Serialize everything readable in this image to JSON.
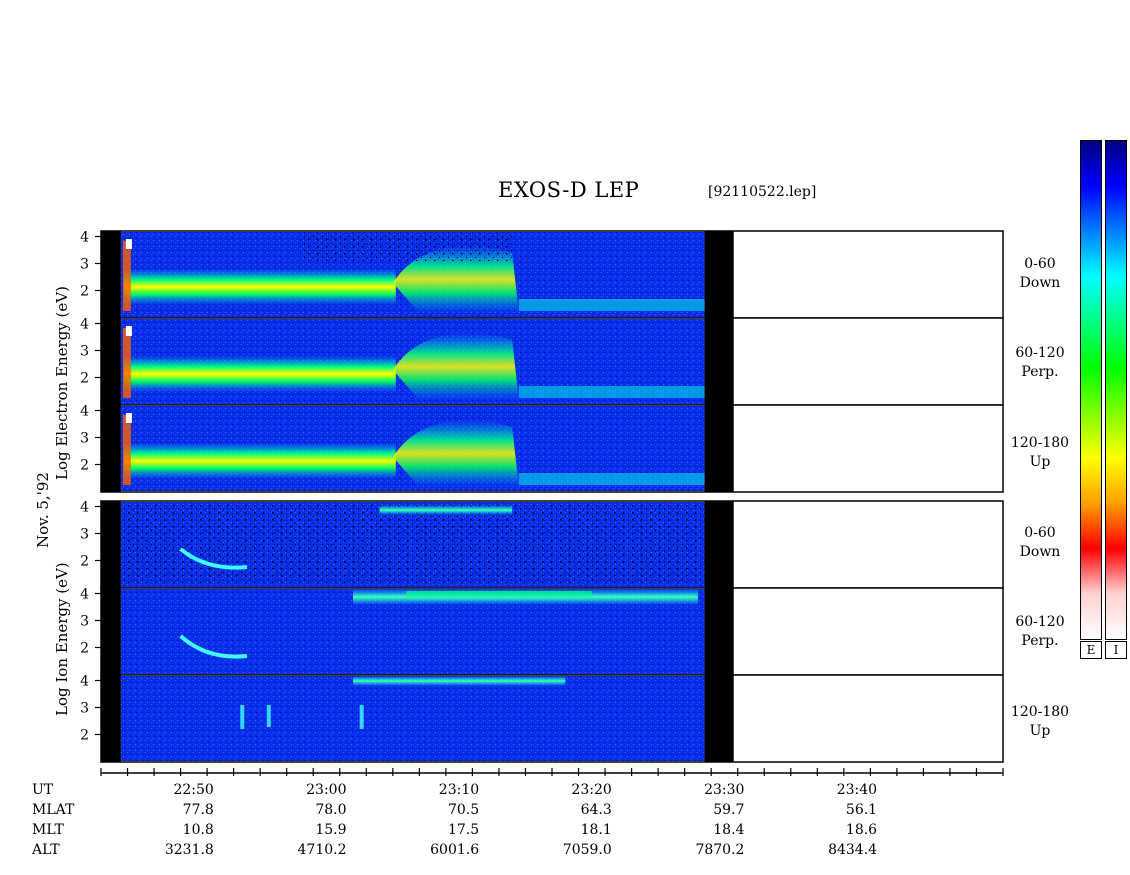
{
  "title": "EXOS-D LEP",
  "file_id": "[92110522.lep]",
  "date_label": "Nov. 5,'92",
  "electron_axis_label": "Log   Electron   Energy (eV)",
  "ion_axis_label": "Log   Ion   Energy (eV)",
  "panels": [
    {
      "group": "electron",
      "angle": "0-60",
      "dir": "Down"
    },
    {
      "group": "electron",
      "angle": "60-120",
      "dir": "Perp."
    },
    {
      "group": "electron",
      "angle": "120-180",
      "dir": "Up"
    },
    {
      "group": "ion",
      "angle": "0-60",
      "dir": "Down"
    },
    {
      "group": "ion",
      "angle": "60-120",
      "dir": "Perp."
    },
    {
      "group": "ion",
      "angle": "120-180",
      "dir": "Up"
    }
  ],
  "colorbars": [
    {
      "label": "E",
      "colors": [
        "#000080",
        "#0000ff",
        "#0080ff",
        "#00ffff",
        "#00ff80",
        "#00ff00",
        "#80ff00",
        "#ffff00",
        "#ffa000",
        "#ff0000",
        "#ffd0d0",
        "#ffffff"
      ]
    },
    {
      "label": "I",
      "colors": [
        "#000080",
        "#0000ff",
        "#0080ff",
        "#00ffff",
        "#00ff80",
        "#00ff00",
        "#80ff00",
        "#ffff00",
        "#ffa000",
        "#ff0000",
        "#ffd0d0",
        "#ffffff"
      ]
    }
  ],
  "ephemeris": {
    "row_labels": [
      "UT",
      "MLAT",
      "MLT",
      "ALT"
    ],
    "columns": [
      {
        "ut": "22:50",
        "mlat": "77.8",
        "mlt": "10.8",
        "alt": "3231.8"
      },
      {
        "ut": "23:00",
        "mlat": "78.0",
        "mlt": "15.9",
        "alt": "4710.2"
      },
      {
        "ut": "23:10",
        "mlat": "70.5",
        "mlt": "17.5",
        "alt": "6001.6"
      },
      {
        "ut": "23:20",
        "mlat": "64.3",
        "mlt": "18.1",
        "alt": "7059.0"
      },
      {
        "ut": "23:30",
        "mlat": "59.7",
        "mlt": "18.4",
        "alt": "7870.2"
      },
      {
        "ut": "23:40",
        "mlat": "56.1",
        "mlt": "18.6",
        "alt": "8434.4"
      }
    ]
  },
  "chart_data": {
    "type": "heatmap",
    "title": "EXOS-D LEP",
    "xlabel": "UT",
    "ylabel": "Log Energy (eV)",
    "x_range_minutes_ut": [
      "22:43",
      "23:44"
    ],
    "data_end_ut": "23:31",
    "y_ticks": [
      2,
      3,
      4
    ],
    "x_ticks": [
      "22:50",
      "23:00",
      "23:10",
      "23:20",
      "23:30",
      "23:40"
    ],
    "series": [
      {
        "name": "Electron 0-60 Down",
        "description_hint": "intense 2-2.5 band 22:45-23:14, drops to low-energy trace after 23:14"
      },
      {
        "name": "Electron 60-120 Perp.",
        "description_hint": "similar"
      },
      {
        "name": "Electron 120-180 Up",
        "description_hint": "similar"
      },
      {
        "name": "Ion 0-60 Down",
        "description_hint": "weak, diffuse"
      },
      {
        "name": "Ion 60-120 Perp.",
        "description_hint": "band near 4 from 23:06 to 23:30"
      },
      {
        "name": "Ion 120-180 Up",
        "description_hint": "weak"
      }
    ]
  }
}
